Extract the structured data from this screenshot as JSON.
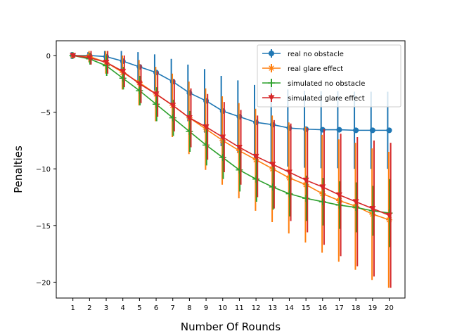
{
  "chart_data": {
    "type": "line",
    "title": "",
    "xlabel": "Number Of Rounds",
    "ylabel": "Penalties",
    "x": [
      1,
      2,
      3,
      4,
      5,
      6,
      7,
      8,
      9,
      10,
      11,
      12,
      13,
      14,
      15,
      16,
      17,
      18,
      19,
      20
    ],
    "xlim": [
      0.0,
      20.95
    ],
    "ylim": [
      -21.4,
      1.3
    ],
    "yticks": [
      0,
      -5,
      -10,
      -15,
      -20
    ],
    "grid": false,
    "legend_position": "upper-right",
    "series": [
      {
        "name": "real no obstacle",
        "color": "#1f77b4",
        "marker": "circle",
        "values": [
          0,
          0,
          -0.1,
          -0.5,
          -1.0,
          -1.5,
          -2.3,
          -3.3,
          -4.0,
          -4.9,
          -5.4,
          -5.9,
          -6.1,
          -6.4,
          -6.5,
          -6.55,
          -6.55,
          -6.6,
          -6.6,
          -6.6
        ],
        "errors": [
          0.3,
          0.3,
          0.5,
          0.9,
          1.3,
          1.6,
          2.0,
          2.5,
          2.8,
          3.1,
          3.2,
          3.3,
          3.3,
          3.4,
          3.4,
          3.4,
          3.4,
          3.4,
          3.4,
          3.4
        ]
      },
      {
        "name": "real glare effect",
        "color": "#ff7f0e",
        "marker": "x-star",
        "values": [
          0,
          -0.1,
          -0.6,
          -1.5,
          -2.4,
          -3.4,
          -4.4,
          -5.5,
          -6.5,
          -7.5,
          -8.4,
          -9.2,
          -10.0,
          -10.8,
          -11.4,
          -12.2,
          -12.8,
          -13.3,
          -14.0,
          -14.5
        ],
        "errors": [
          0.2,
          0.5,
          1.0,
          1.5,
          2.0,
          2.4,
          2.8,
          3.2,
          3.6,
          3.9,
          4.2,
          4.5,
          4.7,
          4.9,
          5.1,
          5.2,
          5.4,
          5.6,
          5.8,
          6.0
        ]
      },
      {
        "name": "simulated no obstacle",
        "color": "#2ca02c",
        "marker": "plus",
        "values": [
          0,
          -0.3,
          -0.9,
          -2.0,
          -3.1,
          -4.3,
          -5.5,
          -6.7,
          -7.9,
          -9.0,
          -10.1,
          -10.9,
          -11.6,
          -12.2,
          -12.6,
          -12.9,
          -13.2,
          -13.4,
          -13.7,
          -13.9
        ],
        "errors": [
          0.2,
          0.5,
          0.9,
          1.0,
          1.3,
          1.5,
          1.6,
          1.8,
          1.8,
          1.9,
          1.9,
          2.0,
          2.0,
          2.0,
          2.0,
          2.1,
          2.1,
          2.2,
          2.2,
          3.0
        ]
      },
      {
        "name": "simulated glare effect",
        "color": "#d62728",
        "marker": "triangle-down",
        "values": [
          0,
          -0.2,
          -0.6,
          -1.4,
          -2.5,
          -3.4,
          -4.4,
          -5.5,
          -6.3,
          -7.2,
          -8.1,
          -8.9,
          -9.6,
          -10.3,
          -11.0,
          -11.6,
          -12.3,
          -12.9,
          -13.5,
          -14.1
        ],
        "errors": [
          0.2,
          0.6,
          1.0,
          1.4,
          1.7,
          2.0,
          2.3,
          2.6,
          2.9,
          3.1,
          3.3,
          3.6,
          3.9,
          4.3,
          4.6,
          5.1,
          5.4,
          5.7,
          6.0,
          6.4
        ]
      }
    ]
  }
}
